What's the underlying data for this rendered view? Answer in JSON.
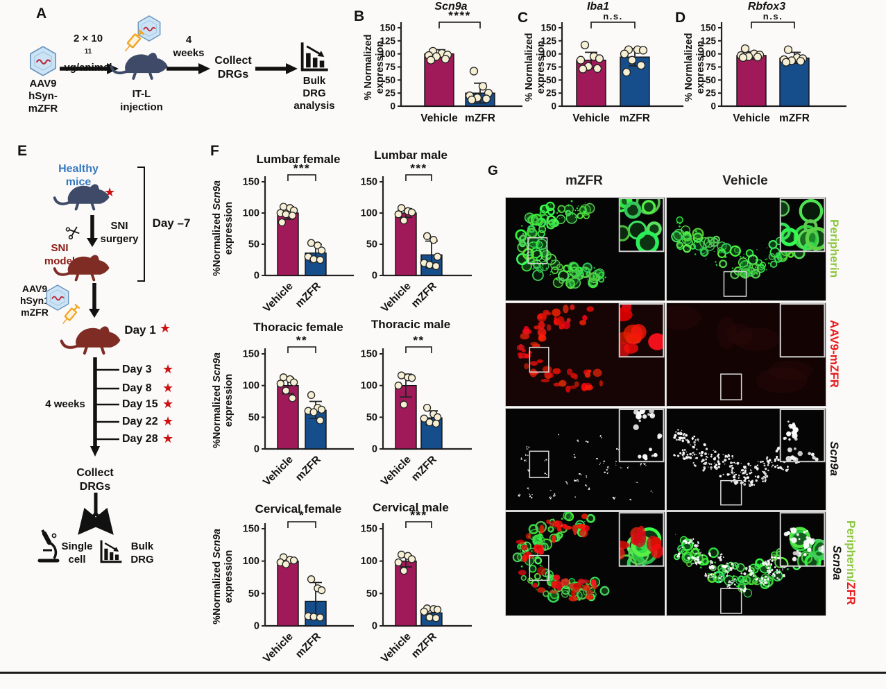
{
  "colors": {
    "vehicle_bar": "#A01A5A",
    "mzfr_bar": "#164E8C",
    "point_fill": "#F6EFD4",
    "star_red": "#CD1111",
    "healthy_blue": "#3579C2",
    "sni_dark_red": "#8C1A15",
    "mouse_blue": "#3E4A68",
    "mouse_maroon": "#7E2C24",
    "peripherin_green": "#8CC63E",
    "aav9_label_red": "#E8191C",
    "virus_blue": "#CBE3F5",
    "syringe_orange": "#F0A31F"
  },
  "panel_a": {
    "label": "A",
    "virus_lines": [
      "AAV9",
      "hSyn-",
      "mZFR"
    ],
    "dose_base": "2 × 10",
    "dose_sup": "11",
    "dose_line2": "vg/animal",
    "injection_lines": [
      "IT-L",
      "injection"
    ],
    "duration_lines": [
      "4",
      "weeks"
    ],
    "collect_lines": [
      "Collect",
      "DRGs"
    ],
    "analysis_lines": [
      "Bulk",
      "DRG",
      "analysis"
    ]
  },
  "chart_data": [
    {
      "panel": "B",
      "type": "bar",
      "title": "Scn9a",
      "ylabel1": "% Normalized",
      "ylabel2": "expression",
      "ylim": [
        0,
        150
      ],
      "yticks": [
        0,
        25,
        50,
        75,
        100,
        125,
        150
      ],
      "sig": "****",
      "categories": [
        "Vehicle",
        "mZFR"
      ],
      "bars": [
        {
          "label": "Vehicle",
          "value": 100,
          "err": [
            93,
            108
          ],
          "points": [
            105,
            101,
            98,
            97,
            95,
            90,
            88
          ]
        },
        {
          "label": "mZFR",
          "value": 25,
          "err": [
            6,
            44
          ],
          "points": [
            67,
            38,
            25,
            20,
            16,
            14,
            12
          ]
        }
      ]
    },
    {
      "panel": "C",
      "type": "bar",
      "title": "Iba1",
      "ylabel1": "% Normlalized",
      "ylabel2": "expression",
      "ylim": [
        0,
        150
      ],
      "yticks": [
        0,
        25,
        50,
        75,
        100,
        125,
        150
      ],
      "sig": "n.s.",
      "categories": [
        "Vehicle",
        "mZFR"
      ],
      "bars": [
        {
          "label": "Vehicle",
          "value": 88,
          "err": [
            73,
            103
          ],
          "points": [
            117,
            95,
            91,
            88,
            76,
            72,
            71
          ]
        },
        {
          "label": "mZFR",
          "value": 94,
          "err": [
            77,
            110
          ],
          "points": [
            108,
            108,
            107,
            100,
            88,
            78,
            65
          ]
        }
      ]
    },
    {
      "panel": "D",
      "type": "bar",
      "title": "Rbfox3",
      "ylabel1": "% Normlalized",
      "ylabel2": "expression",
      "ylim": [
        0,
        150
      ],
      "yticks": [
        0,
        25,
        50,
        75,
        100,
        125,
        150
      ],
      "sig": "n.s.",
      "categories": [
        "Vehicle",
        "mZFR"
      ],
      "bars": [
        {
          "label": "Vehicle",
          "value": 97,
          "err": [
            90,
            104
          ],
          "points": [
            110,
            100,
            98,
            97,
            95,
            94,
            93
          ]
        },
        {
          "label": "mZFR",
          "value": 92,
          "err": [
            82,
            103
          ],
          "points": [
            108,
            93,
            91,
            89,
            87,
            86,
            84
          ]
        }
      ]
    },
    {
      "panel": "F1",
      "type": "bar",
      "title": "Lumbar female",
      "ylim": [
        0,
        150
      ],
      "yticks": [
        0,
        50,
        100,
        150
      ],
      "sig": "***",
      "categories": [
        "Vehicle",
        "mZFR"
      ],
      "bars": [
        {
          "label": "Vehicle",
          "value": 100,
          "err": [
            90,
            110
          ],
          "points": [
            110,
            108,
            104,
            100,
            98,
            96,
            85
          ]
        },
        {
          "label": "mZFR",
          "value": 36,
          "err": [
            22,
            50
          ],
          "points": [
            52,
            48,
            40,
            30,
            26,
            25
          ]
        }
      ]
    },
    {
      "panel": "F2",
      "type": "bar",
      "title": "Lumbar male",
      "ylim": [
        0,
        150
      ],
      "yticks": [
        0,
        50,
        100,
        150
      ],
      "sig": "***",
      "categories": [
        "Vehicle",
        "mZFR"
      ],
      "bars": [
        {
          "label": "Vehicle",
          "value": 100,
          "err": [
            93,
            107
          ],
          "points": [
            108,
            103,
            101,
            98,
            88
          ]
        },
        {
          "label": "mZFR",
          "value": 33,
          "err": [
            12,
            55
          ],
          "points": [
            63,
            57,
            30,
            20,
            17,
            15
          ]
        }
      ]
    },
    {
      "panel": "F3",
      "type": "bar",
      "title": "Thoracic female",
      "ylim": [
        0,
        150
      ],
      "yticks": [
        0,
        50,
        100,
        150
      ],
      "sig": "**",
      "categories": [
        "Vehicle",
        "mZFR"
      ],
      "bars": [
        {
          "label": "Vehicle",
          "value": 100,
          "err": [
            87,
            112
          ],
          "points": [
            113,
            110,
            105,
            103,
            92,
            80
          ]
        },
        {
          "label": "mZFR",
          "value": 61,
          "err": [
            48,
            75
          ],
          "points": [
            85,
            65,
            62,
            60,
            58,
            45
          ]
        }
      ]
    },
    {
      "panel": "F4",
      "type": "bar",
      "title": "Thoracic male",
      "ylim": [
        0,
        150
      ],
      "yticks": [
        0,
        50,
        100,
        150
      ],
      "sig": "**",
      "categories": [
        "Vehicle",
        "mZFR"
      ],
      "bars": [
        {
          "label": "Vehicle",
          "value": 100,
          "err": [
            82,
            118
          ],
          "points": [
            116,
            113,
            112,
            100,
            70
          ]
        },
        {
          "label": "mZFR",
          "value": 49,
          "err": [
            38,
            60
          ],
          "points": [
            65,
            55,
            50,
            48,
            42,
            40
          ]
        }
      ]
    },
    {
      "panel": "F5",
      "type": "bar",
      "title": "Cervical female",
      "ylim": [
        0,
        150
      ],
      "yticks": [
        0,
        50,
        100,
        150
      ],
      "sig": "*",
      "categories": [
        "Vehicle",
        "mZFR"
      ],
      "bars": [
        {
          "label": "Vehicle",
          "value": 100,
          "err": [
            97,
            103
          ],
          "points": [
            106,
            102,
            101,
            98,
            95
          ]
        },
        {
          "label": "mZFR",
          "value": 38,
          "err": [
            10,
            67
          ],
          "points": [
            72,
            58,
            55,
            15,
            14,
            13
          ]
        }
      ]
    },
    {
      "panel": "F6",
      "type": "bar",
      "title": "Cervical male",
      "ylim": [
        0,
        150
      ],
      "yticks": [
        0,
        50,
        100,
        150
      ],
      "sig": "***",
      "categories": [
        "Vehicle",
        "mZFR"
      ],
      "bars": [
        {
          "label": "Vehicle",
          "value": 100,
          "err": [
            91,
            109
          ],
          "points": [
            110,
            108,
            103,
            98,
            85
          ]
        },
        {
          "label": "mZFR",
          "value": 20,
          "err": [
            10,
            28
          ],
          "points": [
            27,
            26,
            25,
            22,
            13,
            12
          ]
        }
      ]
    }
  ],
  "panel_e": {
    "label": "E",
    "healthy_lines": [
      "Healthy",
      "mice"
    ],
    "sni_surgery_lines": [
      "SNI",
      "surgery"
    ],
    "sni_model_lines": [
      "SNI",
      "model"
    ],
    "day_minus7": "Day –7",
    "aav_lines": [
      "AAV9",
      "hSyn1",
      "mZFR"
    ],
    "day1": "Day 1",
    "weeks": "4 weeks",
    "timeline_days": [
      "Day 3",
      "Day 8",
      "Day 15",
      "Day 22",
      "Day 28"
    ],
    "collect_lines": [
      "Collect",
      "DRGs"
    ],
    "single_cell_lines": [
      "Single",
      "cell"
    ],
    "bulk_lines": [
      "Bulk",
      "DRG"
    ]
  },
  "panel_f": {
    "label": "F",
    "ylabel_pre": "%Normalized",
    "ylabel_gene": "Scn9a",
    "ylabel_line2": "expression"
  },
  "panel_g": {
    "label": "G",
    "col_headers": [
      "mZFR",
      "Vehicle"
    ],
    "row_labels": {
      "r1": "Peripherin",
      "r2": "AAV9-mZFR",
      "r3": "Scn9a",
      "r4_green": "Peripherin/",
      "r4_red": "ZFR",
      "r4_gene": "Scn9a"
    },
    "images": [
      {
        "name": "mzfr-peripherin",
        "layers": [
          {
            "ch": "green",
            "pat": "crescent",
            "n": 85
          }
        ]
      },
      {
        "name": "vehicle-peripherin",
        "layers": [
          {
            "ch": "green",
            "pat": "vband",
            "n": 75
          }
        ]
      },
      {
        "name": "mzfr-aav9",
        "bg": "#170404",
        "layers": [
          {
            "ch": "red",
            "pat": "crescent",
            "n": 65
          }
        ]
      },
      {
        "name": "vehicle-aav9",
        "bg": "#140303",
        "layers": [
          {
            "ch": "red",
            "pat": "faint",
            "n": 6
          }
        ]
      },
      {
        "name": "mzfr-scn9a",
        "layers": [
          {
            "ch": "white",
            "pat": "sparse",
            "n": 55
          }
        ]
      },
      {
        "name": "vehicle-scn9a",
        "layers": [
          {
            "ch": "white",
            "pat": "vband",
            "n": 130
          }
        ]
      },
      {
        "name": "mzfr-merge",
        "layers": [
          {
            "ch": "green",
            "pat": "crescent",
            "n": 70
          },
          {
            "ch": "red",
            "pat": "crescent",
            "n": 48
          }
        ]
      },
      {
        "name": "vehicle-merge",
        "layers": [
          {
            "ch": "green",
            "pat": "vband",
            "n": 60
          },
          {
            "ch": "white",
            "pat": "vband",
            "n": 95
          }
        ]
      }
    ]
  }
}
